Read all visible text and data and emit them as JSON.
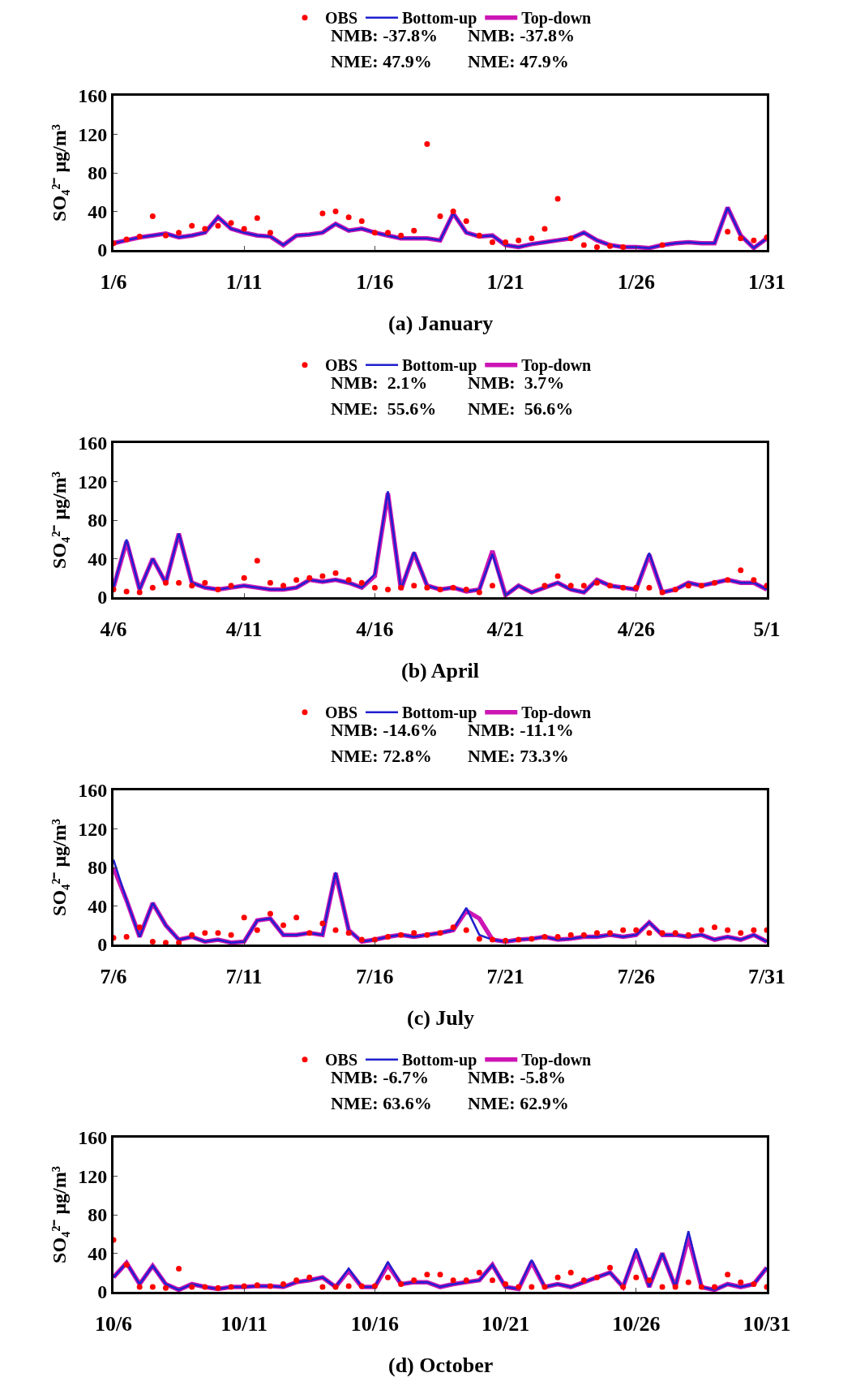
{
  "chart_data": [
    {
      "type": "line",
      "title": "(a) January",
      "ylabel": "SO₄²⁻ μg/m³",
      "legend": "top",
      "line_style": "solid",
      "grid": false,
      "annotations": [
        "NMB: -37.8%",
        "NME: 47.9%",
        "NMB: -37.8%",
        "NME: 47.9%"
      ],
      "xlim": [
        "--01-06",
        "--01-31"
      ],
      "xticks": [
        {
          "value": "--01-06",
          "label": "1/6"
        },
        {
          "value": "--01-11",
          "label": "1/11"
        },
        {
          "value": "--01-16",
          "label": "1/16"
        },
        {
          "value": "--01-21",
          "label": "1/21"
        },
        {
          "value": "--01-26",
          "label": "1/26"
        },
        {
          "value": "--01-31",
          "label": "1/31"
        }
      ],
      "ylim": [
        0,
        160
      ],
      "yticks": [
        0,
        40,
        80,
        120,
        160
      ],
      "x": [
        "--01-06",
        "--01-06T12:00",
        "--01-07",
        "--01-07T12:00",
        "--01-08",
        "--01-08T12:00",
        "--01-09",
        "--01-09T12:00",
        "--01-10",
        "--01-10T12:00",
        "--01-11",
        "--01-11T12:00",
        "--01-12",
        "--01-12T12:00",
        "--01-13",
        "--01-13T12:00",
        "--01-14",
        "--01-14T12:00",
        "--01-15",
        "--01-15T12:00",
        "--01-16",
        "--01-16T12:00",
        "--01-17",
        "--01-17T12:00",
        "--01-18",
        "--01-18T12:00",
        "--01-19",
        "--01-19T12:00",
        "--01-20",
        "--01-20T12:00",
        "--01-21",
        "--01-21T12:00",
        "--01-22",
        "--01-22T12:00",
        "--01-23",
        "--01-23T12:00",
        "--01-24",
        "--01-24T12:00",
        "--01-25",
        "--01-25T12:00",
        "--01-26",
        "--01-26T12:00",
        "--01-27",
        "--01-27T12:00",
        "--01-28",
        "--01-28T12:00",
        "--01-29",
        "--01-29T12:00",
        "--01-30",
        "--01-30T12:00",
        "--01-31"
      ],
      "series": [
        {
          "name": "OBS",
          "type": "scatter",
          "marker": "circle",
          "color": "#ff0000",
          "values": [
            7,
            11,
            14,
            35,
            15,
            18,
            25,
            22,
            25,
            28,
            22,
            33,
            18,
            null,
            null,
            null,
            38,
            40,
            34,
            30,
            18,
            18,
            15,
            20,
            110,
            35,
            40,
            30,
            15,
            8,
            8,
            10,
            12,
            22,
            53,
            12,
            5,
            3,
            4,
            3,
            null,
            null,
            5,
            null,
            null,
            null,
            null,
            19,
            12,
            10,
            13
          ]
        },
        {
          "name": "Bottom-up",
          "type": "line",
          "color": "#1f1fcf",
          "values": [
            7,
            10,
            13,
            15,
            17,
            13,
            15,
            18,
            34,
            22,
            18,
            15,
            14,
            5,
            15,
            16,
            18,
            27,
            20,
            22,
            18,
            15,
            12,
            12,
            12,
            10,
            38,
            18,
            14,
            15,
            5,
            3,
            6,
            8,
            10,
            12,
            18,
            10,
            5,
            3,
            3,
            2,
            5,
            7,
            8,
            7,
            7,
            44,
            15,
            2,
            12
          ]
        },
        {
          "name": "Top-down",
          "type": "line",
          "color": "#cc16b4",
          "values": [
            7,
            10,
            13,
            15,
            17,
            13,
            15,
            18,
            34,
            22,
            18,
            15,
            14,
            5,
            15,
            16,
            18,
            27,
            20,
            22,
            18,
            15,
            12,
            12,
            12,
            10,
            38,
            18,
            14,
            15,
            5,
            3,
            6,
            8,
            10,
            12,
            18,
            10,
            5,
            3,
            3,
            2,
            5,
            7,
            8,
            7,
            7,
            44,
            15,
            2,
            12
          ]
        }
      ]
    },
    {
      "type": "line",
      "title": "(b) April",
      "ylabel": "SO₄²⁻ μg/m³",
      "legend": "top",
      "line_style": "solid",
      "grid": false,
      "annotations": [
        "NMB:  2.1%",
        "NME:  55.6%",
        "NMB:  3.7%",
        "NME:  56.6%"
      ],
      "xlim": [
        "--04-06",
        "--05-01"
      ],
      "xticks": [
        {
          "value": "--04-06",
          "label": "4/6"
        },
        {
          "value": "--04-11",
          "label": "4/11"
        },
        {
          "value": "--04-16",
          "label": "4/16"
        },
        {
          "value": "--04-21",
          "label": "4/21"
        },
        {
          "value": "--04-26",
          "label": "4/26"
        },
        {
          "value": "--05-01",
          "label": "5/1"
        }
      ],
      "ylim": [
        0,
        160
      ],
      "yticks": [
        0,
        40,
        80,
        120,
        160
      ],
      "x": [
        "--04-06",
        "--04-06T12:00",
        "--04-07",
        "--04-07T12:00",
        "--04-08",
        "--04-08T12:00",
        "--04-09",
        "--04-09T12:00",
        "--04-10",
        "--04-10T12:00",
        "--04-11",
        "--04-11T12:00",
        "--04-12",
        "--04-12T12:00",
        "--04-13",
        "--04-13T12:00",
        "--04-14",
        "--04-14T12:00",
        "--04-15",
        "--04-15T12:00",
        "--04-16",
        "--04-16T12:00",
        "--04-17",
        "--04-17T12:00",
        "--04-18",
        "--04-18T12:00",
        "--04-19",
        "--04-19T12:00",
        "--04-20",
        "--04-20T12:00",
        "--04-21",
        "--04-21T12:00",
        "--04-22",
        "--04-22T12:00",
        "--04-23",
        "--04-23T12:00",
        "--04-24",
        "--04-24T12:00",
        "--04-25",
        "--04-25T12:00",
        "--04-26",
        "--04-26T12:00",
        "--04-27",
        "--04-27T12:00",
        "--04-28",
        "--04-28T12:00",
        "--04-29",
        "--04-29T12:00",
        "--04-30",
        "--04-30T12:00",
        "--05-01"
      ],
      "series": [
        {
          "name": "OBS",
          "type": "scatter",
          "marker": "circle",
          "color": "#ff0000",
          "values": [
            8,
            6,
            5,
            10,
            15,
            15,
            12,
            15,
            8,
            12,
            20,
            38,
            15,
            12,
            18,
            20,
            22,
            25,
            18,
            15,
            10,
            8,
            10,
            12,
            10,
            8,
            10,
            8,
            5,
            12,
            null,
            null,
            null,
            12,
            22,
            12,
            12,
            15,
            12,
            10,
            10,
            10,
            5,
            8,
            12,
            12,
            15,
            18,
            28,
            18,
            12
          ]
        },
        {
          "name": "Bottom-up",
          "type": "line",
          "color": "#1f1fcf",
          "values": [
            10,
            60,
            8,
            40,
            15,
            66,
            15,
            10,
            8,
            10,
            12,
            10,
            8,
            8,
            10,
            18,
            16,
            18,
            15,
            10,
            24,
            110,
            8,
            47,
            12,
            8,
            10,
            6,
            8,
            45,
            2,
            12,
            5,
            10,
            15,
            8,
            5,
            18,
            12,
            10,
            8,
            46,
            5,
            8,
            15,
            12,
            15,
            18,
            15,
            15,
            8
          ]
        },
        {
          "name": "Top-down",
          "type": "line",
          "color": "#cc16b4",
          "values": [
            10,
            58,
            8,
            40,
            15,
            66,
            15,
            10,
            8,
            10,
            12,
            10,
            8,
            8,
            10,
            18,
            16,
            18,
            15,
            10,
            22,
            108,
            8,
            46,
            12,
            8,
            10,
            6,
            8,
            48,
            2,
            12,
            5,
            10,
            15,
            8,
            5,
            18,
            12,
            10,
            8,
            44,
            5,
            8,
            15,
            12,
            15,
            18,
            15,
            15,
            8
          ]
        }
      ]
    },
    {
      "type": "line",
      "title": "(c) July",
      "ylabel": "SO₄²⁻ μg/m³",
      "legend": "top",
      "line_style": "solid",
      "grid": false,
      "annotations": [
        "NMB: -14.6%",
        "NME: 72.8%",
        "NMB: -11.1%",
        "NME: 73.3%"
      ],
      "xlim": [
        "--07-06",
        "--07-31"
      ],
      "xticks": [
        {
          "value": "--07-06",
          "label": "7/6"
        },
        {
          "value": "--07-11",
          "label": "7/11"
        },
        {
          "value": "--07-16",
          "label": "7/16"
        },
        {
          "value": "--07-21",
          "label": "7/21"
        },
        {
          "value": "--07-26",
          "label": "7/26"
        },
        {
          "value": "--07-31",
          "label": "7/31"
        }
      ],
      "ylim": [
        0,
        160
      ],
      "yticks": [
        0,
        40,
        80,
        120,
        160
      ],
      "x": [
        "--07-06",
        "--07-06T12:00",
        "--07-07",
        "--07-07T12:00",
        "--07-08",
        "--07-08T12:00",
        "--07-09",
        "--07-09T12:00",
        "--07-10",
        "--07-10T12:00",
        "--07-11",
        "--07-11T12:00",
        "--07-12",
        "--07-12T12:00",
        "--07-13",
        "--07-13T12:00",
        "--07-14",
        "--07-14T12:00",
        "--07-15",
        "--07-15T12:00",
        "--07-16",
        "--07-16T12:00",
        "--07-17",
        "--07-17T12:00",
        "--07-18",
        "--07-18T12:00",
        "--07-19",
        "--07-19T12:00",
        "--07-20",
        "--07-20T12:00",
        "--07-21",
        "--07-21T12:00",
        "--07-22",
        "--07-22T12:00",
        "--07-23",
        "--07-23T12:00",
        "--07-24",
        "--07-24T12:00",
        "--07-25",
        "--07-25T12:00",
        "--07-26",
        "--07-26T12:00",
        "--07-27",
        "--07-27T12:00",
        "--07-28",
        "--07-28T12:00",
        "--07-29",
        "--07-29T12:00",
        "--07-30",
        "--07-30T12:00",
        "--07-31"
      ],
      "series": [
        {
          "name": "OBS",
          "type": "scatter",
          "marker": "circle",
          "color": "#ff0000",
          "values": [
            7,
            8,
            18,
            3,
            2,
            2,
            10,
            12,
            12,
            10,
            28,
            15,
            32,
            20,
            28,
            12,
            22,
            15,
            12,
            5,
            5,
            8,
            10,
            12,
            10,
            12,
            18,
            15,
            6,
            5,
            4,
            5,
            6,
            8,
            8,
            10,
            10,
            12,
            12,
            15,
            15,
            12,
            12,
            12,
            10,
            15,
            18,
            15,
            12,
            15,
            15
          ]
        },
        {
          "name": "Bottom-up",
          "type": "line",
          "color": "#1f1fcf",
          "values": [
            88,
            46,
            8,
            43,
            20,
            5,
            8,
            3,
            5,
            2,
            3,
            25,
            27,
            10,
            10,
            12,
            10,
            75,
            15,
            3,
            5,
            8,
            10,
            8,
            10,
            12,
            15,
            38,
            10,
            5,
            3,
            5,
            6,
            8,
            5,
            6,
            8,
            8,
            10,
            8,
            10,
            23,
            10,
            10,
            8,
            10,
            5,
            8,
            5,
            10,
            3
          ]
        },
        {
          "name": "Top-down",
          "type": "line",
          "color": "#cc16b4",
          "values": [
            80,
            46,
            8,
            43,
            20,
            5,
            8,
            3,
            5,
            2,
            3,
            25,
            27,
            10,
            10,
            12,
            10,
            74,
            15,
            3,
            5,
            8,
            10,
            8,
            10,
            12,
            15,
            35,
            27,
            5,
            3,
            5,
            6,
            8,
            5,
            6,
            8,
            8,
            10,
            8,
            10,
            23,
            10,
            10,
            8,
            10,
            5,
            8,
            5,
            10,
            3
          ]
        }
      ]
    },
    {
      "type": "line",
      "title": "(d) October",
      "ylabel": "SO₄²⁻ μg/m³",
      "legend": "top",
      "line_style": "solid",
      "grid": false,
      "annotations": [
        "NMB: -6.7%",
        "NME: 63.6%",
        "NMB: -5.8%",
        "NME: 62.9%"
      ],
      "xlim": [
        "--10-06",
        "--10-31"
      ],
      "xticks": [
        {
          "value": "--10-06",
          "label": "10/6"
        },
        {
          "value": "--10-11",
          "label": "10/11"
        },
        {
          "value": "--10-16",
          "label": "10/16"
        },
        {
          "value": "--10-21",
          "label": "10/21"
        },
        {
          "value": "--10-26",
          "label": "10/26"
        },
        {
          "value": "--10-31",
          "label": "10/31"
        }
      ],
      "ylim": [
        0,
        160
      ],
      "yticks": [
        0,
        40,
        80,
        120,
        160
      ],
      "x": [
        "--10-06",
        "--10-06T12:00",
        "--10-07",
        "--10-07T12:00",
        "--10-08",
        "--10-08T12:00",
        "--10-09",
        "--10-09T12:00",
        "--10-10",
        "--10-10T12:00",
        "--10-11",
        "--10-11T12:00",
        "--10-12",
        "--10-12T12:00",
        "--10-13",
        "--10-13T12:00",
        "--10-14",
        "--10-14T12:00",
        "--10-15",
        "--10-15T12:00",
        "--10-16",
        "--10-16T12:00",
        "--10-17",
        "--10-17T12:00",
        "--10-18",
        "--10-18T12:00",
        "--10-19",
        "--10-19T12:00",
        "--10-20",
        "--10-20T12:00",
        "--10-21",
        "--10-21T12:00",
        "--10-22",
        "--10-22T12:00",
        "--10-23",
        "--10-23T12:00",
        "--10-24",
        "--10-24T12:00",
        "--10-25",
        "--10-25T12:00",
        "--10-26",
        "--10-26T12:00",
        "--10-27",
        "--10-27T12:00",
        "--10-28",
        "--10-28T12:00",
        "--10-29",
        "--10-29T12:00",
        "--10-30",
        "--10-30T12:00",
        "--10-31"
      ],
      "series": [
        {
          "name": "OBS",
          "type": "scatter",
          "marker": "circle",
          "color": "#ff0000",
          "values": [
            54,
            28,
            5,
            5,
            4,
            24,
            5,
            5,
            4,
            5,
            6,
            7,
            6,
            8,
            12,
            15,
            5,
            5,
            6,
            6,
            6,
            15,
            8,
            12,
            18,
            18,
            12,
            12,
            20,
            12,
            8,
            5,
            5,
            5,
            15,
            20,
            12,
            15,
            25,
            5,
            15,
            12,
            5,
            5,
            10,
            5,
            5,
            18,
            10,
            8,
            5
          ]
        },
        {
          "name": "Bottom-up",
          "type": "line",
          "color": "#1f1fcf",
          "values": [
            15,
            30,
            8,
            27,
            8,
            2,
            8,
            5,
            3,
            5,
            5,
            6,
            6,
            5,
            10,
            12,
            15,
            5,
            24,
            5,
            5,
            31,
            8,
            10,
            10,
            5,
            8,
            10,
            12,
            28,
            5,
            3,
            33,
            5,
            8,
            5,
            10,
            15,
            20,
            5,
            45,
            5,
            40,
            5,
            63,
            5,
            2,
            8,
            5,
            8,
            25
          ]
        },
        {
          "name": "Top-down",
          "type": "line",
          "color": "#cc16b4",
          "values": [
            15,
            30,
            8,
            27,
            8,
            2,
            8,
            5,
            3,
            5,
            5,
            6,
            6,
            5,
            10,
            12,
            15,
            5,
            22,
            5,
            5,
            28,
            8,
            10,
            10,
            5,
            8,
            10,
            12,
            28,
            5,
            3,
            31,
            5,
            8,
            5,
            10,
            15,
            20,
            5,
            42,
            5,
            40,
            5,
            57,
            5,
            2,
            8,
            5,
            8,
            25
          ]
        }
      ]
    }
  ]
}
